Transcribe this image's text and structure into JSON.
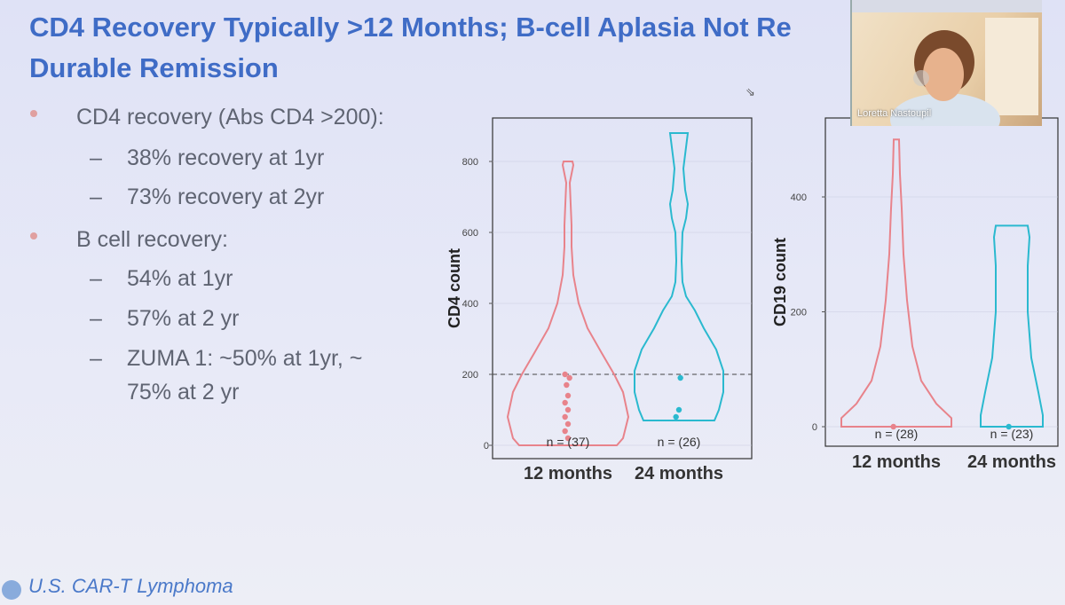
{
  "slide": {
    "title_line1": "CD4 Recovery Typically >12 Months; B-cell Aplasia Not Re",
    "title_line2": "Durable Remission",
    "bullets": [
      {
        "text": "CD4 recovery (Abs CD4 >200):",
        "subs": [
          "38% recovery at 1yr",
          "73% recovery at 2yr"
        ]
      },
      {
        "text": "B cell recovery:",
        "subs": [
          "54% at 1yr",
          "57% at 2 yr",
          "ZUMA 1: ~50% at 1yr, ~",
          "75% at 2 yr"
        ]
      }
    ],
    "dash": "–",
    "footer": "U.S. CAR-T Lymphoma"
  },
  "video": {
    "participant_name": "Loretta Nastoupil"
  },
  "colors": {
    "title": "#3f6cc6",
    "series_12": "#e8838b",
    "series_24": "#2ab9cf"
  },
  "chart_data": [
    {
      "type": "violin",
      "ylabel": "CD4 count",
      "categories": [
        "12 months",
        "24 months"
      ],
      "ylim": [
        0,
        900
      ],
      "yticks": [
        "0",
        "200",
        "400",
        "600",
        "800"
      ],
      "reference_line": 200,
      "series": [
        {
          "category": "12 months",
          "n_label": "n = (37)",
          "min": 0,
          "max": 800
        },
        {
          "category": "24 months",
          "n_label": "n = (26)",
          "min": 70,
          "max": 880
        }
      ]
    },
    {
      "type": "violin",
      "ylabel": "CD19 count",
      "categories": [
        "12 months",
        "24 months"
      ],
      "ylim": [
        0,
        500
      ],
      "yticks": [
        "0",
        "200",
        "400"
      ],
      "series": [
        {
          "category": "12 months",
          "n_label": "n = (28)",
          "min": 0,
          "max": 500
        },
        {
          "category": "24 months",
          "n_label": "n = (23)",
          "min": 0,
          "max": 350
        }
      ]
    }
  ]
}
